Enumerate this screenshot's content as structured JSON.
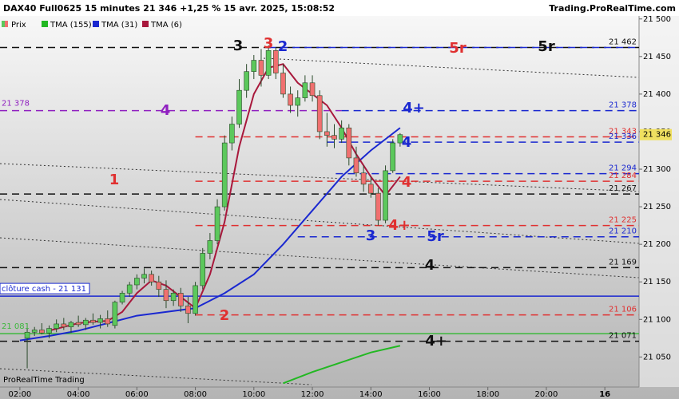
{
  "chart_data": {
    "type": "candlestick",
    "title": "DAX40 Full0625 15 minutes 21 346 +1,25 % 15 avr. 2025, 15:08:52",
    "source": "Trading.ProRealTime.com",
    "footer": "ProRealTime Trading",
    "xlim": [
      1.32,
      23.17
    ],
    "ylim": [
      21010,
      21504
    ],
    "xticks": [
      {
        "value": 2,
        "label": "02:00"
      },
      {
        "value": 4,
        "label": "04:00"
      },
      {
        "value": 6,
        "label": "06:00"
      },
      {
        "value": 8,
        "label": "08:00"
      },
      {
        "value": 10,
        "label": "10:00"
      },
      {
        "value": 12,
        "label": "12:00"
      },
      {
        "value": 14,
        "label": "14:00"
      },
      {
        "value": 16,
        "label": "16:00"
      },
      {
        "value": 18,
        "label": "18:00"
      },
      {
        "value": 20,
        "label": "20:00"
      },
      {
        "value": 22,
        "label": "16"
      }
    ],
    "yticks": [
      {
        "value": 21050,
        "label": "21 050"
      },
      {
        "value": 21100,
        "label": "21 100"
      },
      {
        "value": 21150,
        "label": "21 150"
      },
      {
        "value": 21200,
        "label": "21 200"
      },
      {
        "value": 21250,
        "label": "21 250"
      },
      {
        "value": 21300,
        "label": "21 300"
      },
      {
        "value": 21350,
        "label": "21 350"
      },
      {
        "value": 21400,
        "label": "21 400"
      },
      {
        "value": 21450,
        "label": "21 450"
      },
      {
        "value": 21500,
        "label": "21 500"
      }
    ],
    "price": {
      "name": "Prix",
      "up_color": "#5cc85c",
      "down_color": "#f07070",
      "x": [
        2.25,
        2.5,
        2.75,
        3,
        3.25,
        3.5,
        3.75,
        4,
        4.25,
        4.5,
        4.75,
        5,
        5.25,
        5.5,
        5.75,
        6,
        6.25,
        6.5,
        6.75,
        7,
        7.25,
        7.5,
        7.75,
        8,
        8.25,
        8.5,
        8.75,
        9,
        9.25,
        9.5,
        9.75,
        10,
        10.25,
        10.5,
        10.75,
        11,
        11.25,
        11.5,
        11.75,
        12,
        12.25,
        12.5,
        12.75,
        13,
        13.25,
        13.5,
        13.75,
        14,
        14.25,
        14.5,
        14.75,
        15
      ],
      "open": [
        21075,
        21083,
        21086,
        21082,
        21088,
        21094,
        21090,
        21096,
        21093,
        21099,
        21096,
        21101,
        21092,
        21123,
        21135,
        21146,
        21155,
        21160,
        21150,
        21140,
        21125,
        21135,
        21118,
        21108,
        21145,
        21188,
        21205,
        21250,
        21335,
        21360,
        21405,
        21430,
        21445,
        21425,
        21458,
        21428,
        21400,
        21385,
        21395,
        21415,
        21398,
        21350,
        21345,
        21340,
        21355,
        21315,
        21295,
        21280,
        21268,
        21232,
        21298,
        21335
      ],
      "high": [
        21095,
        21090,
        21095,
        21092,
        21100,
        21102,
        21098,
        21105,
        21102,
        21108,
        21106,
        21112,
        21125,
        21138,
        21150,
        21160,
        21168,
        21165,
        21158,
        21152,
        21140,
        21142,
        21130,
        21150,
        21195,
        21215,
        21260,
        21345,
        21370,
        21420,
        21440,
        21452,
        21460,
        21465,
        21462,
        21440,
        21410,
        21405,
        21425,
        21425,
        21405,
        21375,
        21360,
        21365,
        21360,
        21330,
        21305,
        21290,
        21275,
        21305,
        21340,
        21348
      ],
      "low": [
        21035,
        21078,
        21080,
        21075,
        21083,
        21086,
        21082,
        21090,
        21086,
        21093,
        21088,
        21090,
        21088,
        21120,
        21130,
        21140,
        21148,
        21145,
        21130,
        21115,
        21118,
        21110,
        21095,
        21105,
        21140,
        21180,
        21200,
        21245,
        21325,
        21355,
        21395,
        21420,
        21410,
        21420,
        21420,
        21395,
        21375,
        21370,
        21390,
        21390,
        21340,
        21330,
        21328,
        21335,
        21305,
        21290,
        21270,
        21262,
        21225,
        21228,
        21295,
        21330
      ],
      "close": [
        21083,
        21086,
        21082,
        21088,
        21094,
        21090,
        21096,
        21093,
        21099,
        21096,
        21101,
        21094,
        21123,
        21135,
        21146,
        21155,
        21160,
        21150,
        21140,
        21125,
        21135,
        21118,
        21108,
        21145,
        21188,
        21205,
        21250,
        21335,
        21360,
        21405,
        21430,
        21445,
        21425,
        21458,
        21428,
        21400,
        21385,
        21395,
        21415,
        21398,
        21350,
        21345,
        21340,
        21355,
        21315,
        21295,
        21280,
        21268,
        21232,
        21298,
        21335,
        21346
      ]
    },
    "series": [
      {
        "name": "TMA (155)",
        "color": "#22b822",
        "x": [
          11,
          12,
          13,
          14,
          15
        ],
        "values": [
          21015,
          21030,
          21043,
          21056,
          21065
        ]
      },
      {
        "name": "TMA (31)",
        "color": "#1a28d0",
        "x": [
          2,
          3,
          4,
          5,
          6,
          7,
          8,
          9,
          10,
          11,
          12,
          13,
          14,
          15
        ],
        "values": [
          21072,
          21078,
          21085,
          21095,
          21105,
          21110,
          21115,
          21135,
          21160,
          21200,
          21245,
          21290,
          21325,
          21355
        ]
      },
      {
        "name": "TMA (6)",
        "color": "#a8183c",
        "x": [
          3,
          3.5,
          4,
          4.5,
          5,
          5.5,
          6,
          6.5,
          7,
          7.5,
          8,
          8.5,
          9,
          9.5,
          10,
          10.5,
          11,
          11.5,
          12,
          12.5,
          13,
          13.5,
          14,
          14.5,
          15
        ],
        "values": [
          21085,
          21090,
          21095,
          21097,
          21098,
          21110,
          21135,
          21152,
          21145,
          21130,
          21115,
          21160,
          21230,
          21330,
          21400,
          21435,
          21440,
          21415,
          21400,
          21385,
          21355,
          21320,
          21290,
          21265,
          21290
        ]
      }
    ],
    "levels": [
      {
        "value": 21462,
        "color": "#111111",
        "label": "21 462"
      },
      {
        "value": 21462,
        "color": "#1a28d0",
        "start": 10.5
      },
      {
        "value": 21378,
        "color": "#9020c0",
        "end": 13,
        "left_label": "21 378"
      },
      {
        "value": 21378,
        "color": "#1a28d0",
        "start": 13,
        "label": "21 378"
      },
      {
        "value": 21343,
        "color": "#e03030",
        "start": 8,
        "label": "21 343"
      },
      {
        "value": 21336,
        "color": "#1a28d0",
        "start": 12.5,
        "label": "21 336"
      },
      {
        "value": 21294,
        "color": "#1a28d0",
        "start": 12.8,
        "label": "21 294"
      },
      {
        "value": 21284,
        "color": "#e03030",
        "start": 8,
        "label": "21 284"
      },
      {
        "value": 21267,
        "color": "#111111",
        "label": "21 267"
      },
      {
        "value": 21225,
        "color": "#e03030",
        "start": 8,
        "label": "21 225"
      },
      {
        "value": 21210,
        "color": "#1a28d0",
        "start": 11.5,
        "label": "21 210"
      },
      {
        "value": 21169,
        "color": "#111111",
        "label": "21 169"
      },
      {
        "value": 21131,
        "color": "#1a28d0",
        "solid": true,
        "left_label": "clôture cash - 21 131"
      },
      {
        "value": 21106,
        "color": "#e03030",
        "start": 8,
        "label": "21 106"
      },
      {
        "value": 21081,
        "color": "#3cb83c",
        "solid": true,
        "left_label": "21 081"
      },
      {
        "value": 21071,
        "color": "#111111",
        "label": "21 071"
      }
    ],
    "annotations": [
      {
        "text": "3",
        "color": "#111111"
      },
      {
        "text": "3",
        "color": "#e03030"
      },
      {
        "text": "2",
        "color": "#1a28d0"
      },
      {
        "text": "5r",
        "color": "#e03030"
      },
      {
        "text": "5r",
        "color": "#111111"
      },
      {
        "text": "4",
        "color": "#9020c0"
      },
      {
        "text": "4+",
        "color": "#1a28d0"
      },
      {
        "text": "4",
        "color": "#1a28d0"
      },
      {
        "text": "1",
        "color": "#e03030"
      },
      {
        "text": "4",
        "color": "#e03030"
      },
      {
        "text": "3",
        "color": "#1a28d0"
      },
      {
        "text": "4+",
        "color": "#e03030"
      },
      {
        "text": "5r",
        "color": "#1a28d0"
      },
      {
        "text": "4",
        "color": "#111111"
      },
      {
        "text": "2",
        "color": "#e03030"
      },
      {
        "text": "4+",
        "color": "#111111"
      }
    ],
    "last_price": {
      "value": 21346,
      "label": "21 346",
      "color": "#f0e060"
    }
  }
}
